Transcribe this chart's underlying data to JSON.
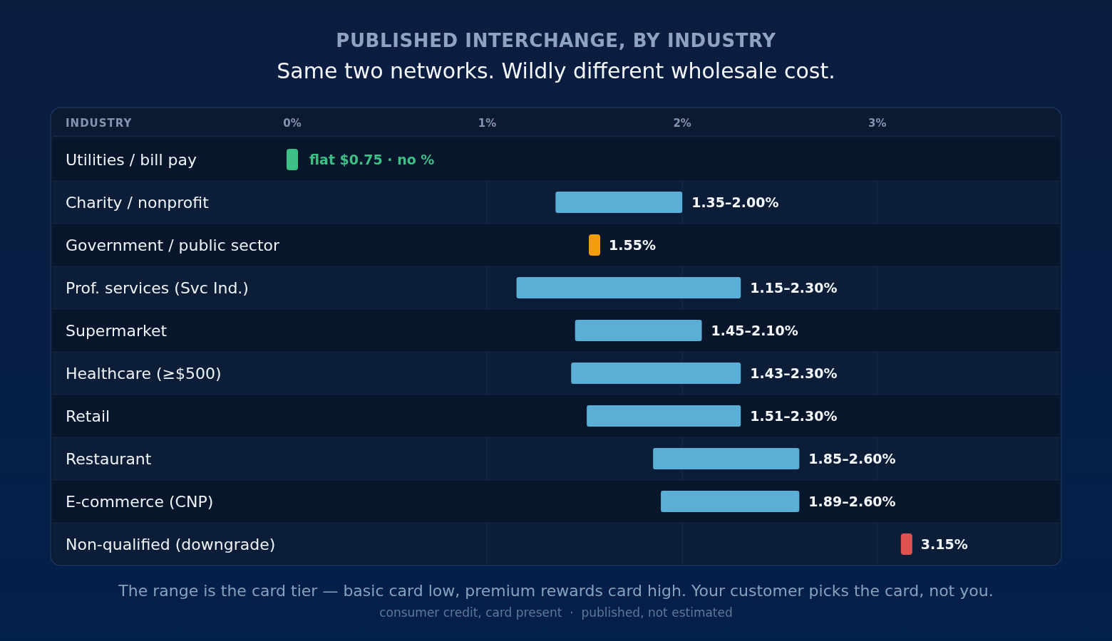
{
  "chart_data": {
    "type": "bar",
    "orientation": "horizontal",
    "title": "PUBLISHED INTERCHANGE, BY INDUSTRY",
    "subtitle": "Same two networks. Wildly different wholesale cost.",
    "ylabel": "INDUSTRY",
    "categories": [
      "Utilities / bill pay",
      "Charity / nonprofit",
      "Government / public sector",
      "Prof. services (Svc Ind.)",
      "Supermarket",
      "Healthcare (≥$500)",
      "Retail",
      "Restaurant",
      "E-commerce (CNP)",
      "Non-qualified (downgrade)"
    ],
    "series": [
      {
        "type": "bar",
        "color": "#5bafd6",
        "base": [
          null,
          1.35,
          null,
          1.15,
          1.45,
          1.43,
          1.51,
          1.85,
          1.89,
          null
        ],
        "values": [
          null,
          0.65,
          null,
          1.15,
          0.65,
          0.87,
          0.79,
          0.75,
          0.71,
          null
        ]
      },
      {
        "type": "scatter",
        "colors": [
          "#3dbf86",
          null,
          "#f59e0b",
          null,
          null,
          null,
          null,
          null,
          null,
          "#e05252"
        ],
        "values": [
          0,
          null,
          1.55,
          null,
          null,
          null,
          null,
          null,
          null,
          3.15
        ],
        "value_labels": [
          null,
          null,
          "1.55%",
          null,
          null,
          null,
          null,
          null,
          null,
          "3.15%"
        ]
      }
    ],
    "xlim": [
      0,
      3.9
    ],
    "xticks": [
      {
        "value": 0,
        "label": "0%"
      },
      {
        "value": 1,
        "label": "1%"
      },
      {
        "value": 2,
        "label": "2%"
      },
      {
        "value": 3,
        "label": "3%"
      }
    ],
    "grid": "x",
    "annotations": [
      {
        "text": "flat $0.75 · no %",
        "x": 0,
        "y": "Utilities / bill pay"
      },
      {
        "text": "1.35–2.00%",
        "x": 2.0,
        "y": "Charity / nonprofit"
      },
      {
        "text": "1.15–2.30%",
        "x": 2.3,
        "y": "Prof. services (Svc Ind.)"
      },
      {
        "text": "1.45–2.10%",
        "x": 2.1,
        "y": "Supermarket"
      },
      {
        "text": "1.43–2.30%",
        "x": 2.3,
        "y": "Healthcare (≥$500)"
      },
      {
        "text": "1.51–2.30%",
        "x": 2.3,
        "y": "Retail"
      },
      {
        "text": "1.85–2.60%",
        "x": 2.6,
        "y": "Restaurant"
      },
      {
        "text": "1.89–2.60%",
        "x": 2.6,
        "y": "E-commerce (CNP)"
      },
      "The range is the card tier — basic card low, premium rewards card high. Your customer picks the card, not you.",
      "consumer credit, card present  ·  published, not estimated"
    ]
  }
}
